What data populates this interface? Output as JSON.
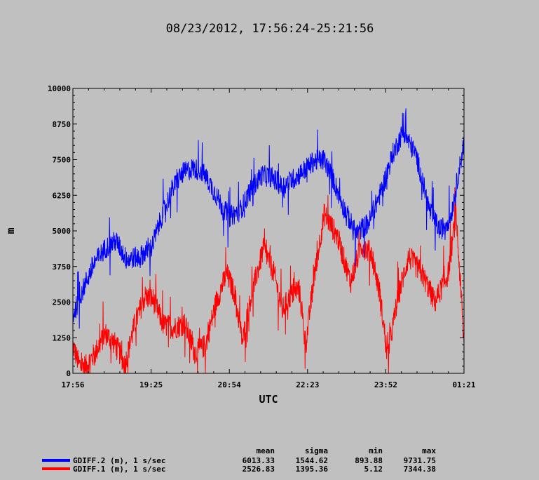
{
  "chart_data": {
    "type": "line",
    "title": "08/23/2012, 17:56:24-25:21:56",
    "xlabel": "UTC",
    "ylabel": "m",
    "x_tick_labels": [
      "17:56",
      "19:25",
      "20:54",
      "22:23",
      "23:52",
      "01:21"
    ],
    "y_ticks": [
      0,
      1250,
      2500,
      3750,
      5000,
      6250,
      7500,
      8750,
      10000
    ],
    "ylim": [
      0,
      10000
    ],
    "x_range_hours": [
      17.9333,
      25.35
    ],
    "grid": false,
    "legend_position": "bottom-left",
    "stats_headers": [
      "mean",
      "sigma",
      "min",
      "max"
    ],
    "series": [
      {
        "name": "GDIFF.2 (m), 1 s/sec",
        "color": "#0000ff",
        "stats": [
          "6013.33",
          "1544.62",
          "893.88",
          "9731.75"
        ],
        "x": [
          17.93,
          18.05,
          18.2,
          18.35,
          18.55,
          18.75,
          18.95,
          19.2,
          19.42,
          19.6,
          19.8,
          20.0,
          20.2,
          20.38,
          20.55,
          20.75,
          20.9,
          21.1,
          21.3,
          21.5,
          21.7,
          21.9,
          22.1,
          22.3,
          22.5,
          22.7,
          22.85,
          23.05,
          23.3,
          23.55,
          23.8,
          24.0,
          24.2,
          24.45,
          24.7,
          24.9,
          25.1,
          25.35
        ],
        "values": [
          2000,
          2600,
          3300,
          3900,
          4400,
          4650,
          4000,
          4100,
          4400,
          5400,
          6400,
          7000,
          7200,
          7100,
          6600,
          5900,
          5500,
          5700,
          6400,
          6950,
          6900,
          6550,
          6800,
          7100,
          7450,
          7500,
          6900,
          5900,
          4900,
          5300,
          6500,
          7700,
          8500,
          7600,
          5700,
          5000,
          5500,
          8100
        ]
      },
      {
        "name": "GDIFF.1 (m), 1 s/sec",
        "color": "#ff0000",
        "stats": [
          "2526.83",
          "1395.36",
          "5.12",
          "7344.38"
        ],
        "x": [
          17.93,
          18.05,
          18.18,
          18.35,
          18.55,
          18.75,
          18.92,
          19.1,
          19.3,
          19.45,
          19.65,
          19.85,
          20.05,
          20.25,
          20.45,
          20.65,
          20.85,
          21.0,
          21.15,
          21.3,
          21.55,
          21.75,
          21.9,
          22.05,
          22.22,
          22.35,
          22.5,
          22.7,
          22.95,
          23.2,
          23.4,
          23.6,
          23.75,
          23.9,
          24.1,
          24.3,
          24.55,
          24.8,
          25.05,
          25.2,
          25.35
        ],
        "values": [
          1000,
          300,
          250,
          700,
          1400,
          1000,
          300,
          1700,
          2700,
          2600,
          1700,
          1600,
          1750,
          700,
          1000,
          2500,
          3500,
          2800,
          1100,
          2600,
          4400,
          3500,
          2200,
          2700,
          3000,
          1000,
          3300,
          5600,
          4800,
          3200,
          4500,
          4200,
          2800,
          600,
          2700,
          4100,
          3500,
          2500,
          3500,
          5600,
          1000
        ]
      }
    ]
  }
}
